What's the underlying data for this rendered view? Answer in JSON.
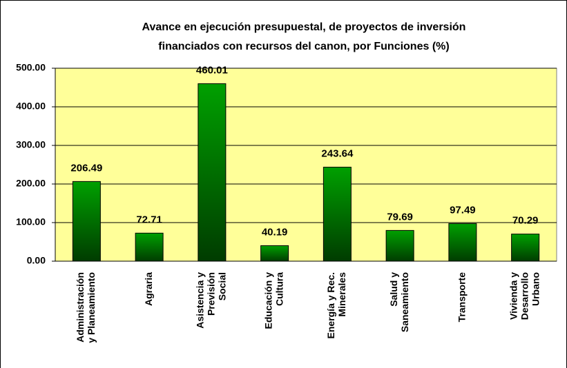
{
  "chart_data": {
    "type": "bar",
    "title": [
      "Avance en ejecución presupuestal, de proyectos de inversión",
      "financiados con recursos del canon, por Funciones (%)"
    ],
    "categories": [
      [
        "Administración",
        "y Planeamiento"
      ],
      [
        "Agraria"
      ],
      [
        "Asistencia y",
        "Previsión",
        "Social"
      ],
      [
        "Educación y",
        "Cultura"
      ],
      [
        "Energía y Rec.",
        "Minerales"
      ],
      [
        "Salud y",
        "Saneamiento"
      ],
      [
        "Transporte"
      ],
      [
        "Vivienda y",
        "Desarrollo",
        "Urbano"
      ]
    ],
    "values": [
      206.49,
      72.71,
      460.01,
      40.19,
      243.64,
      79.69,
      97.49,
      70.29
    ],
    "color": "#008000",
    "plot_background": "#ffff99",
    "ylim": [
      0,
      500
    ],
    "yticks": [
      {
        "value": 0,
        "label": "0.00"
      },
      {
        "value": 100,
        "label": "100.00"
      },
      {
        "value": 200,
        "label": "200.00"
      },
      {
        "value": 300,
        "label": "300.00"
      },
      {
        "value": 400,
        "label": "400.00"
      },
      {
        "value": 500,
        "label": "500.00"
      }
    ],
    "grid": true
  }
}
